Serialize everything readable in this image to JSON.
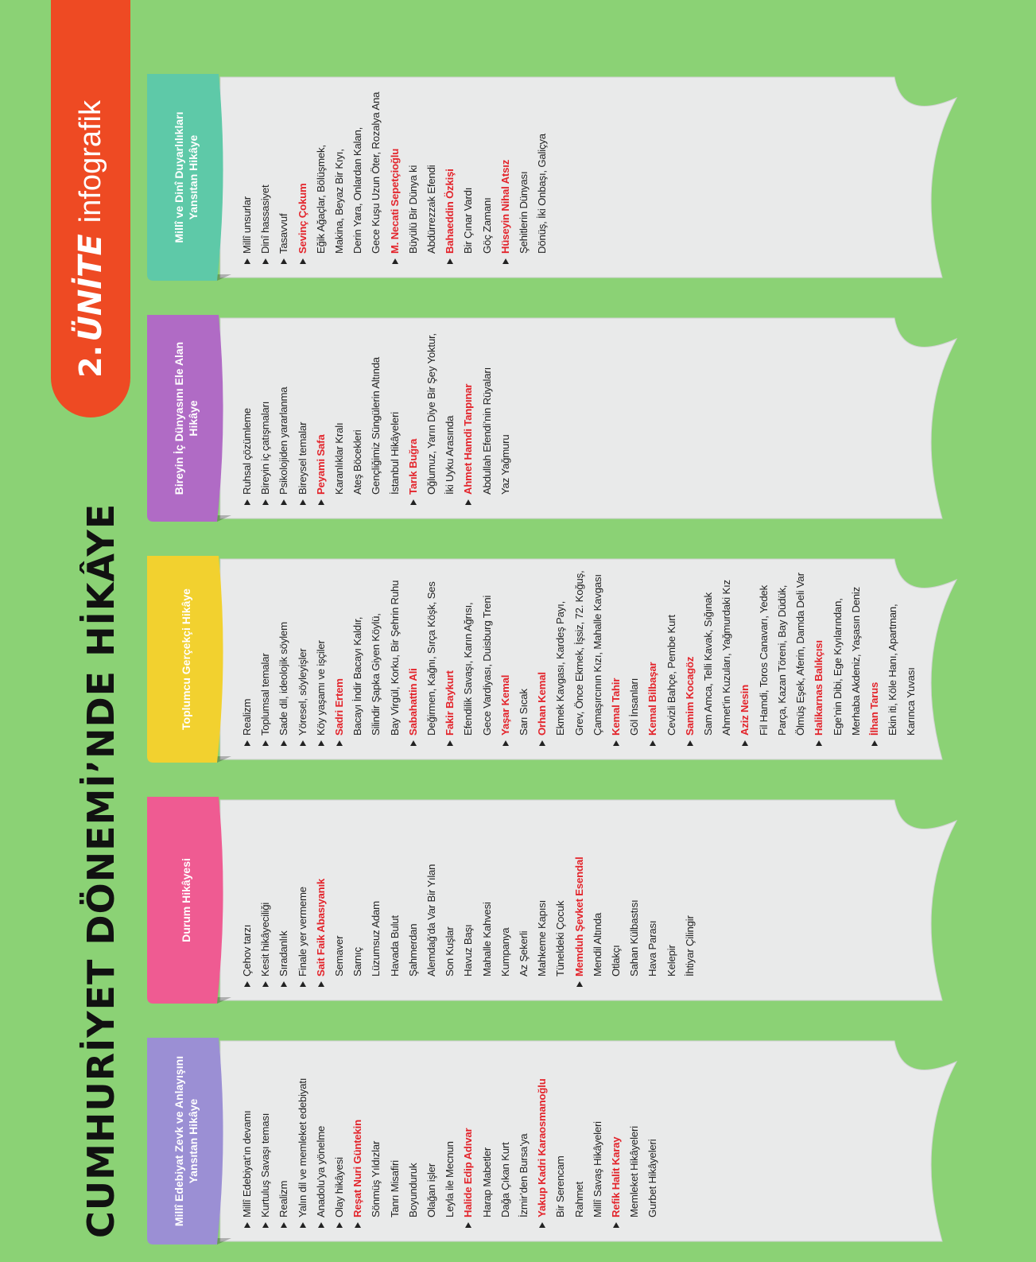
{
  "title": "CUMHURİYET DÖNEMİ’NDE HİKÂYE",
  "unit": {
    "number": "2.",
    "word": "ÜNİTE",
    "sub": "infografik"
  },
  "colors": {
    "background": "#8bd275",
    "badge": "#ee4a23",
    "author": "#e3242b"
  },
  "cards": [
    {
      "header": "Millî Edebiyat Zevk ve Anlayışını Yansıtan Hikâye",
      "color": "#9b8fd4",
      "items": [
        {
          "t": "Millî Edebiyat’ın devamı",
          "k": "bullet"
        },
        {
          "t": "Kurtuluş Savaşı teması",
          "k": "bullet"
        },
        {
          "t": "Realizm",
          "k": "bullet"
        },
        {
          "t": "Yalın dil ve memleket edebiyatı",
          "k": "bullet"
        },
        {
          "t": "Anadolu’ya yönelme",
          "k": "bullet"
        },
        {
          "t": "Olay hikâyesi",
          "k": "bullet"
        },
        {
          "t": "Reşat Nuri Güntekin",
          "k": "author"
        },
        {
          "t": "Sönmüş Yıldızlar",
          "k": "work"
        },
        {
          "t": "Tanrı Misafiri",
          "k": "work"
        },
        {
          "t": "Boyunduruk",
          "k": "work"
        },
        {
          "t": "Olağan işler",
          "k": "work"
        },
        {
          "t": "Leyla ile Mecnun",
          "k": "work"
        },
        {
          "t": "Halide Edip Adıvar",
          "k": "author"
        },
        {
          "t": "Harap Mabetler",
          "k": "work"
        },
        {
          "t": "Dağa Çıkan Kurt",
          "k": "work"
        },
        {
          "t": "İzmir’den Bursa’ya",
          "k": "work"
        },
        {
          "t": "Yakup Kadri Karaosmanoğlu",
          "k": "author"
        },
        {
          "t": "Bir Serencam",
          "k": "work"
        },
        {
          "t": "Rahmet",
          "k": "work"
        },
        {
          "t": "Millî Savaş Hikâyeleri",
          "k": "work"
        },
        {
          "t": "Refik Halit Karay",
          "k": "author"
        },
        {
          "t": "Memleket Hikâyeleri",
          "k": "work"
        },
        {
          "t": "Gurbet Hikâyeleri",
          "k": "work"
        }
      ]
    },
    {
      "header": "Durum Hikâyesi",
      "color": "#ef5b92",
      "items": [
        {
          "t": "Çehov tarzı",
          "k": "bullet"
        },
        {
          "t": "Kesit hikâyeciliği",
          "k": "bullet"
        },
        {
          "t": "Sıradanlık",
          "k": "bullet"
        },
        {
          "t": "Finale yer vermeme",
          "k": "bullet"
        },
        {
          "t": "Sait Faik Abasıyanık",
          "k": "author"
        },
        {
          "t": "Semaver",
          "k": "work"
        },
        {
          "t": "Sarnıç",
          "k": "work"
        },
        {
          "t": "Lüzumsuz Adam",
          "k": "work"
        },
        {
          "t": "Havada Bulut",
          "k": "work"
        },
        {
          "t": "Şahmerdan",
          "k": "work"
        },
        {
          "t": "Alemdağ’da Var Bir Yılan",
          "k": "work"
        },
        {
          "t": "Son Kuşlar",
          "k": "work"
        },
        {
          "t": "Havuz Başı",
          "k": "work"
        },
        {
          "t": "Mahalle Kahvesi",
          "k": "work"
        },
        {
          "t": "Kumpanya",
          "k": "work"
        },
        {
          "t": "Az Şekerli",
          "k": "work"
        },
        {
          "t": "Mahkeme Kapısı",
          "k": "work"
        },
        {
          "t": "Tüneldeki Çocuk",
          "k": "work"
        },
        {
          "t": "Memduh Şevket Esendal",
          "k": "author"
        },
        {
          "t": "Mendil Altında",
          "k": "work"
        },
        {
          "t": "Otlakçı",
          "k": "work"
        },
        {
          "t": "Sahan Külbastısı",
          "k": "work"
        },
        {
          "t": "Hava Parası",
          "k": "work"
        },
        {
          "t": "Kelepir",
          "k": "work"
        },
        {
          "t": "İhtiyar Çilingir",
          "k": "work"
        }
      ]
    },
    {
      "header": "Toplumcu Gerçekçi Hikâye",
      "color": "#f2d12f",
      "items": [
        {
          "t": "Realizm",
          "k": "bullet"
        },
        {
          "t": "Toplumsal temalar",
          "k": "bullet"
        },
        {
          "t": "Sade dil, ideolojik söylem",
          "k": "bullet"
        },
        {
          "t": "Yöresel, söyleyişler",
          "k": "bullet"
        },
        {
          "t": "Köy yaşamı ve işçiler",
          "k": "bullet"
        },
        {
          "t": "Sadri Ertem",
          "k": "author"
        },
        {
          "t": "Bacayı İndir Bacayı Kaldır,",
          "k": "work"
        },
        {
          "t": "Silindir Şapka Giyen Köylü,",
          "k": "work"
        },
        {
          "t": "Bay Virgül, Korku, Bir Şehrin Ruhu",
          "k": "work"
        },
        {
          "t": "Sabahattin Ali",
          "k": "author"
        },
        {
          "t": "Değirmen, Kağnı, Sırça Köşk, Ses",
          "k": "work"
        },
        {
          "t": "Fakir Baykurt",
          "k": "author"
        },
        {
          "t": "Efendilik Savaşı, Karın Ağrısı,",
          "k": "work"
        },
        {
          "t": "Gece Vardiyası, Duisburg Treni",
          "k": "work"
        },
        {
          "t": "Yaşar Kemal",
          "k": "author"
        },
        {
          "t": "Sarı Sıcak",
          "k": "work"
        },
        {
          "t": "Orhan Kemal",
          "k": "author"
        },
        {
          "t": "Ekmek Kavgası, Kardeş Payı,",
          "k": "work"
        },
        {
          "t": "Grev, Önce Ekmek, İşsiz, 72. Koğuş,",
          "k": "work"
        },
        {
          "t": "Çamaşırcının Kızı, Mahalle Kavgası",
          "k": "work"
        },
        {
          "t": "Kemal Tahir",
          "k": "author"
        },
        {
          "t": "Göl İnsanları",
          "k": "work"
        },
        {
          "t": "Kemal Bilbaşar",
          "k": "author"
        },
        {
          "t": "Cevizli Bahçe, Pembe Kurt",
          "k": "work"
        },
        {
          "t": "Samim Kocagöz",
          "k": "author"
        },
        {
          "t": "Sam Amca, Telli Kavak, Sığınak",
          "k": "work"
        },
        {
          "t": "Ahmet’in Kuzuları, Yağmurdaki Kız",
          "k": "work"
        },
        {
          "t": "Aziz Nesin",
          "k": "author"
        },
        {
          "t": "Fil Hamdi, Toros Canavarı, Yedek",
          "k": "work"
        },
        {
          "t": "Parça, Kazan Töreni, Bay Düdük,",
          "k": "work"
        },
        {
          "t": "Ölmüş Eşek, Aferin, Damda Deli Var",
          "k": "work"
        },
        {
          "t": "Halikarnas Balıkçısı",
          "k": "author"
        },
        {
          "t": "Ege’nin Dibi, Ege Kıyılarından,",
          "k": "work"
        },
        {
          "t": "Merhaba Akdeniz, Yaşasın Deniz",
          "k": "work"
        },
        {
          "t": "İlhan Tarus",
          "k": "author"
        },
        {
          "t": "Ekin iti, Köle Hanı, Apartman,",
          "k": "work"
        },
        {
          "t": "Karınca Yuvası",
          "k": "work"
        }
      ]
    },
    {
      "header": "Bireyin İç Dünyasını Ele Alan Hikâye",
      "color": "#b06bc5",
      "items": [
        {
          "t": "Ruhsal çözümleme",
          "k": "bullet"
        },
        {
          "t": "Bireyin iç çatışmaları",
          "k": "bullet"
        },
        {
          "t": "Psikolojiden yararlanma",
          "k": "bullet"
        },
        {
          "t": "Bireysel temalar",
          "k": "bullet"
        },
        {
          "t": "Peyami Safa",
          "k": "author"
        },
        {
          "t": "Karanlıklar Kralı",
          "k": "work"
        },
        {
          "t": "Ateş Böcekleri",
          "k": "work"
        },
        {
          "t": "Gençliğimiz Süngülerin Altında",
          "k": "work"
        },
        {
          "t": "İstanbul Hikâyeleri",
          "k": "work"
        },
        {
          "t": "Tarık Buğra",
          "k": "author"
        },
        {
          "t": "Oğlumuz, Yarın Diye Bir Şey Yoktur,",
          "k": "work"
        },
        {
          "t": "İki Uyku Arasında",
          "k": "work"
        },
        {
          "t": "Ahmet Hamdi Tanpınar",
          "k": "author"
        },
        {
          "t": "Abdullah Efendi’nin Rüyaları",
          "k": "work"
        },
        {
          "t": "Yaz Yağmuru",
          "k": "work"
        }
      ]
    },
    {
      "header": "Millî ve Dinî Duyarlılıkları Yansıtan Hikâye",
      "color": "#5ec9a8",
      "items": [
        {
          "t": "Millî unsurlar",
          "k": "bullet"
        },
        {
          "t": "Dinî hassasiyet",
          "k": "bullet"
        },
        {
          "t": "Tasavvuf",
          "k": "bullet"
        },
        {
          "t": "Sevinç Çokum",
          "k": "author"
        },
        {
          "t": "Eğik Ağaçlar, Bölüşmek,",
          "k": "work"
        },
        {
          "t": "Makina, Beyaz Bir Kıyı,",
          "k": "work"
        },
        {
          "t": "Derin Yara, Onlardan Kalan,",
          "k": "work"
        },
        {
          "t": "Gece Kuşu Uzun Öter, Rozalya Ana",
          "k": "work"
        },
        {
          "t": "M. Necati Sepetçioğlu",
          "k": "author"
        },
        {
          "t": "Büyülü Bir Dünya ki",
          "k": "work"
        },
        {
          "t": "Abdürrezzak Efendi",
          "k": "work"
        },
        {
          "t": "Bahaeddin Özkişi",
          "k": "author"
        },
        {
          "t": "Bir Çınar Vardı",
          "k": "work"
        },
        {
          "t": "Göç Zamanı",
          "k": "work"
        },
        {
          "t": "Hüseyin Nihal Atsız",
          "k": "author"
        },
        {
          "t": "Şehitlerin Dünyası",
          "k": "work"
        },
        {
          "t": "Dönüş, İki Onbaşı, Galiçya",
          "k": "work"
        }
      ]
    }
  ]
}
